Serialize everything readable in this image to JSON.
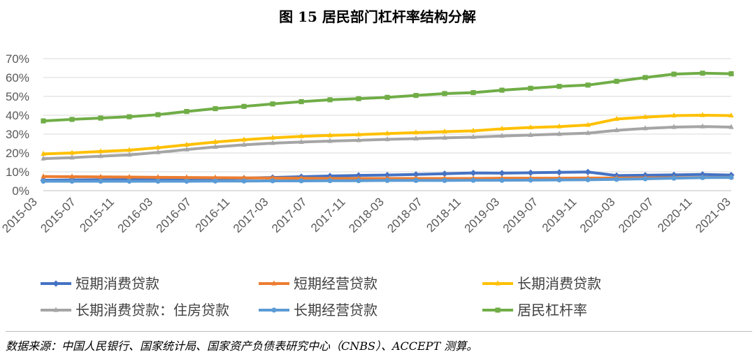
{
  "title": "图 15  居民部门杠杆率结构分解",
  "source": "数据来源：中国人民银行、国家统计局、国家资产负债表研究中心（CNBS）、ACCEPT 测算。",
  "chart_data": {
    "type": "line",
    "title": "图 15  居民部门杠杆率结构分解",
    "xlabel": "",
    "ylabel": "",
    "ylim": [
      0,
      70
    ],
    "yticks": [
      "0%",
      "10%",
      "20%",
      "30%",
      "40%",
      "50%",
      "60%",
      "70%"
    ],
    "x_tick_labels": [
      "2015-03",
      "2015-07",
      "2015-11",
      "2016-03",
      "2016-07",
      "2016-11",
      "2017-03",
      "2017-07",
      "2017-11",
      "2018-03",
      "2018-07",
      "2018-11",
      "2019-03",
      "2019-07",
      "2019-11",
      "2020-03",
      "2020-07",
      "2020-11",
      "2021-03"
    ],
    "grid": true,
    "legend_position": "bottom",
    "series": [
      {
        "name": "短期消费贷款",
        "color": "#4472C4",
        "marker": "diamond",
        "values": [
          5.5,
          5.7,
          5.8,
          5.9,
          6.0,
          6.1,
          6.3,
          6.6,
          7.0,
          7.4,
          7.8,
          8.1,
          8.3,
          8.6,
          9.0,
          9.4,
          9.3,
          9.5,
          9.7,
          9.9,
          8.0,
          8.2,
          8.4,
          8.6,
          8.3
        ]
      },
      {
        "name": "短期经营贷款",
        "color": "#ED7D31",
        "marker": "triangle",
        "values": [
          7.5,
          7.4,
          7.3,
          7.2,
          7.1,
          7.0,
          6.9,
          6.8,
          6.7,
          6.6,
          6.5,
          6.5,
          6.5,
          6.5,
          6.5,
          6.5,
          6.6,
          6.6,
          6.6,
          6.7,
          6.7,
          6.8,
          6.9,
          7.0,
          7.1
        ]
      },
      {
        "name": "长期消费贷款",
        "color": "#FFC000",
        "marker": "triangle",
        "values": [
          19.5,
          20.0,
          20.8,
          21.5,
          22.8,
          24.3,
          25.8,
          27.0,
          28.0,
          28.8,
          29.3,
          29.7,
          30.3,
          30.8,
          31.3,
          31.7,
          32.8,
          33.5,
          34.0,
          34.8,
          38.0,
          39.0,
          39.8,
          40.0,
          39.8
        ]
      },
      {
        "name": "长期消费贷款：住房贷款",
        "color": "#A5A5A5",
        "marker": "triangle",
        "values": [
          17.0,
          17.5,
          18.3,
          19.0,
          20.3,
          21.8,
          23.2,
          24.3,
          25.2,
          25.8,
          26.3,
          26.7,
          27.2,
          27.6,
          28.0,
          28.4,
          29.0,
          29.5,
          30.0,
          30.5,
          32.0,
          33.0,
          33.7,
          34.0,
          33.7
        ]
      },
      {
        "name": "长期经营贷款",
        "color": "#5B9BD5",
        "marker": "circle",
        "values": [
          5.0,
          5.0,
          5.0,
          5.0,
          5.0,
          5.0,
          5.1,
          5.1,
          5.2,
          5.2,
          5.3,
          5.3,
          5.4,
          5.4,
          5.4,
          5.5,
          5.5,
          5.6,
          5.7,
          5.8,
          6.0,
          6.3,
          6.6,
          6.9,
          7.0
        ]
      },
      {
        "name": "居民杠杆率",
        "color": "#70AD47",
        "marker": "square",
        "values": [
          37.0,
          37.8,
          38.5,
          39.2,
          40.3,
          42.0,
          43.5,
          44.7,
          46.0,
          47.2,
          48.2,
          48.8,
          49.5,
          50.5,
          51.5,
          52.0,
          53.3,
          54.3,
          55.3,
          56.0,
          58.0,
          60.0,
          61.8,
          62.3,
          62.0
        ]
      }
    ]
  }
}
